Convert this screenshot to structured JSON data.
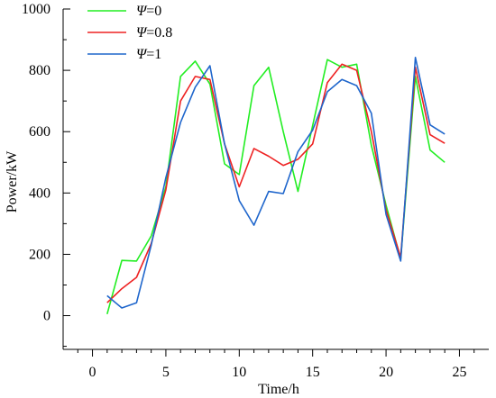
{
  "chart_data": {
    "type": "line",
    "xlabel": "Time/h",
    "ylabel": "Power/kW",
    "xlim": [
      -2,
      27
    ],
    "ylim": [
      -110,
      1000
    ],
    "xticks": [
      0,
      5,
      10,
      15,
      20,
      25
    ],
    "yticks": [
      0,
      200,
      400,
      600,
      800,
      1000
    ],
    "grid": false,
    "legend_position": "top-left",
    "x": [
      1,
      2,
      3,
      4,
      5,
      6,
      7,
      8,
      9,
      10,
      11,
      12,
      13,
      14,
      15,
      16,
      17,
      18,
      19,
      20,
      21,
      22,
      23,
      24
    ],
    "series": [
      {
        "symbol": "Ψ",
        "suffix": "=0",
        "color": "#22ee22",
        "values": [
          5,
          180,
          178,
          260,
          420,
          780,
          830,
          755,
          495,
          460,
          750,
          810,
          600,
          405,
          620,
          835,
          810,
          820,
          555,
          360,
          185,
          780,
          540,
          500
        ]
      },
      {
        "symbol": "Ψ",
        "suffix": "=0.8",
        "color": "#ee2222",
        "values": [
          42,
          88,
          125,
          235,
          410,
          700,
          780,
          770,
          560,
          420,
          545,
          520,
          490,
          510,
          560,
          760,
          820,
          800,
          600,
          345,
          190,
          810,
          590,
          562
        ]
      },
      {
        "symbol": "Ψ",
        "suffix": "=1",
        "color": "#1f66cc",
        "values": [
          65,
          25,
          42,
          230,
          450,
          630,
          745,
          815,
          560,
          375,
          295,
          405,
          398,
          535,
          605,
          730,
          770,
          750,
          660,
          330,
          178,
          842,
          622,
          592
        ]
      }
    ]
  }
}
